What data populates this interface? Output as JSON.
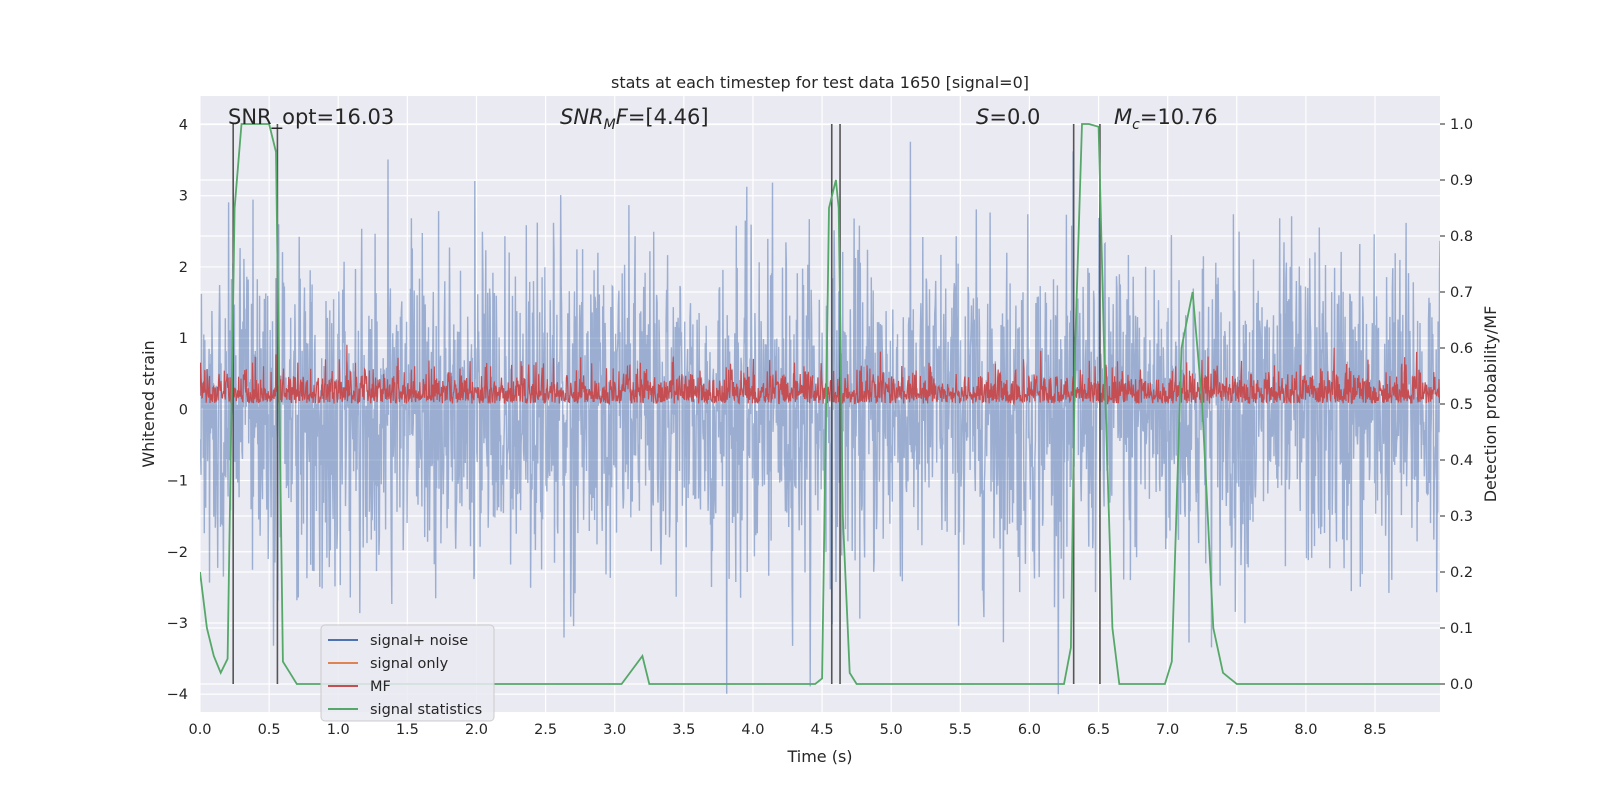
{
  "chart_data": {
    "type": "line",
    "title": "stats at each timestep for test data 1650 [signal=0]",
    "xlabel": "Time (s)",
    "ylabel_left": "Whitened strain",
    "ylabel_right": "Detection probability/MF",
    "xlim": [
      0.0,
      8.97
    ],
    "ylim_left": [
      -4.25,
      4.4
    ],
    "ylim_right": [
      -0.05,
      1.05
    ],
    "xticks": [
      "0.0",
      "0.5",
      "1.0",
      "1.5",
      "2.0",
      "2.5",
      "3.0",
      "3.5",
      "4.0",
      "4.5",
      "5.0",
      "5.5",
      "6.0",
      "6.5",
      "7.0",
      "7.5",
      "8.0",
      "8.5"
    ],
    "yticks_left": [
      "−4",
      "−3",
      "−2",
      "−1",
      "0",
      "1",
      "2",
      "3",
      "4"
    ],
    "yticks_right": [
      "0.0",
      "0.1",
      "0.2",
      "0.3",
      "0.4",
      "0.5",
      "0.6",
      "0.7",
      "0.8",
      "0.9",
      "1.0"
    ],
    "grid": true,
    "legend_position": "lower-left",
    "annotations": {
      "snr_opt": {
        "prefix": "SNR_opt=",
        "value": "16.03"
      },
      "snr_mf": {
        "base": "SNR",
        "sub": "M",
        "suffix": "F=",
        "value": "[4.46]"
      },
      "s": {
        "base": "S",
        "eq": "=",
        "value": "0.0"
      },
      "mc": {
        "base": "M",
        "sub": "c",
        "eq": "=",
        "value": "10.76"
      }
    },
    "vertical_markers_s": [
      0.24,
      0.56,
      4.57,
      4.63,
      6.32,
      6.51
    ],
    "colors": {
      "signal_noise": "#4c72b0",
      "signal_only": "#dd8452",
      "mf": "#c44e52",
      "signal_statistics": "#55a868",
      "markers": "#555555",
      "background": "#eaeaf2",
      "grid": "#ffffff"
    },
    "series": [
      {
        "name": "signal+ noise",
        "axis": "left",
        "style": "dense-noise",
        "color_key": "signal_noise",
        "approx_envelope": {
          "core": [
            -1.6,
            1.6
          ],
          "max_abs": 4.0
        }
      },
      {
        "name": "signal only",
        "axis": "left",
        "style": "flat",
        "color_key": "signal_only",
        "values": []
      },
      {
        "name": "MF",
        "axis": "left",
        "style": "dense-noise",
        "color_key": "mf",
        "approx_envelope": {
          "core": [
            0.05,
            0.5
          ],
          "max": 1.0,
          "min": 0.0
        }
      },
      {
        "name": "signal statistics",
        "axis": "right",
        "color_key": "signal_statistics",
        "x": [
          0.0,
          0.05,
          0.1,
          0.15,
          0.2,
          0.25,
          0.3,
          0.35,
          0.4,
          0.45,
          0.5,
          0.55,
          0.6,
          0.65,
          0.7,
          3.0,
          3.05,
          3.2,
          3.25,
          3.3,
          4.4,
          4.45,
          4.5,
          4.55,
          4.6,
          4.62,
          4.65,
          4.7,
          4.75,
          6.25,
          6.3,
          6.33,
          6.38,
          6.43,
          6.5,
          6.55,
          6.6,
          6.65,
          6.7,
          6.9,
          6.98,
          7.03,
          7.1,
          7.18,
          7.25,
          7.33,
          7.4,
          7.45,
          7.5,
          8.97
        ],
        "y": [
          0.2,
          0.1,
          0.05,
          0.02,
          0.045,
          0.85,
          1.0,
          1.0,
          1.0,
          1.0,
          1.0,
          0.95,
          0.04,
          0.02,
          0.0,
          0.0,
          0.0,
          0.05,
          0.0,
          0.0,
          0.0,
          0.0,
          0.01,
          0.85,
          0.9,
          0.85,
          0.3,
          0.02,
          0.0,
          0.0,
          0.065,
          0.6,
          1.0,
          1.0,
          0.995,
          0.5,
          0.1,
          0.0,
          0.0,
          0.0,
          0.0,
          0.04,
          0.6,
          0.7,
          0.5,
          0.1,
          0.02,
          0.01,
          0.0,
          0.0
        ]
      }
    ]
  }
}
